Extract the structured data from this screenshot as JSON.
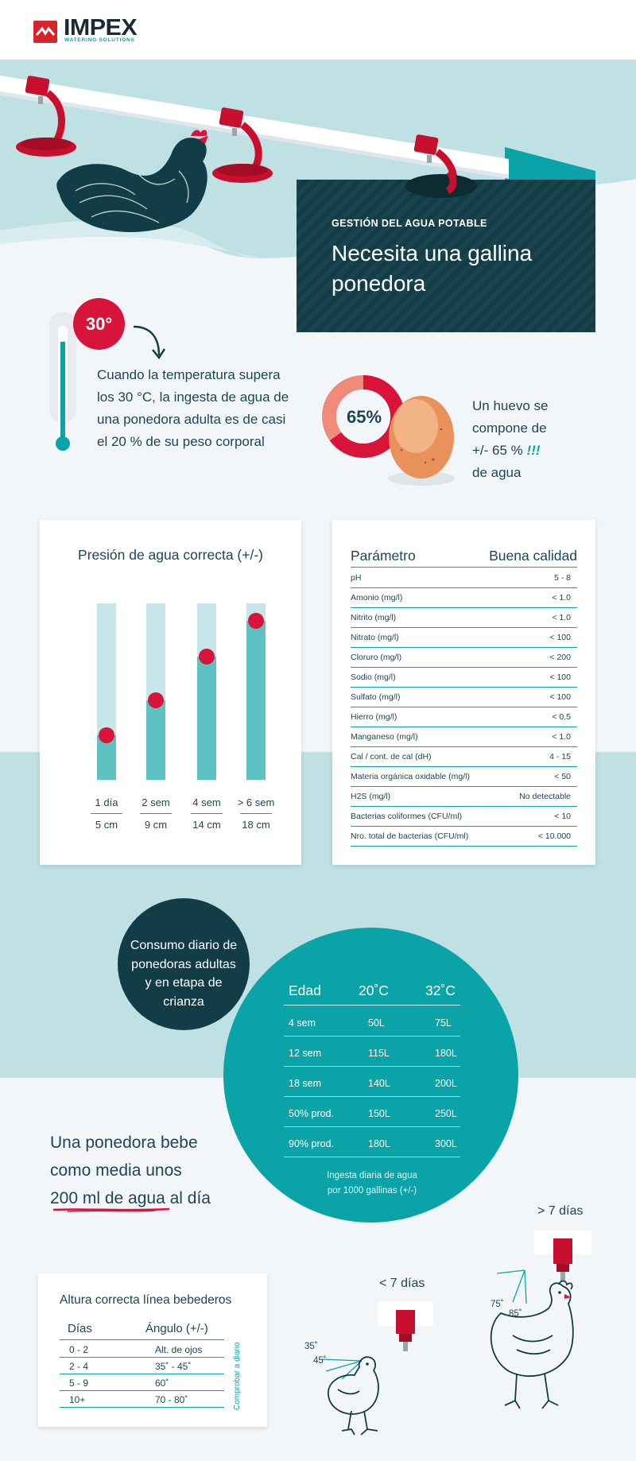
{
  "brand": {
    "name": "IMPEX",
    "tagline": "WATERING SOLUTIONS"
  },
  "hero": {
    "kicker": "GESTIÓN DEL AGUA POTABLE",
    "title": "Necesita una gallina ponedora"
  },
  "temperature": {
    "badge": "30°",
    "text": "Cuando la temperatura supera los 30 °C, la ingesta de agua de una ponedora adulta es de casi el 20 % de su peso corporal"
  },
  "egg": {
    "percent_label": "65%",
    "percent_value": 65,
    "text_line1": "Un huevo se",
    "text_line2": "compone de",
    "text_line3": "+/- 65 %",
    "text_line4": "de agua"
  },
  "pressure": {
    "title": "Presión de agua correcta (+/-)",
    "columns": [
      {
        "age": "1 día",
        "height": "5 cm",
        "value_cm": 5
      },
      {
        "age": "2 sem",
        "height": "9 cm",
        "value_cm": 9
      },
      {
        "age": "4 sem",
        "height": "14 cm",
        "value_cm": 14
      },
      {
        "age": "> 6 sem",
        "height": "18 cm",
        "value_cm": 18
      }
    ]
  },
  "params": {
    "header_param": "Parámetro",
    "header_quality": "Buena calidad",
    "rows": [
      {
        "name": "pH",
        "value": "5 - 8"
      },
      {
        "name": "Amonio (mg/l)",
        "value": "< 1.0"
      },
      {
        "name": "Nitrito (mg/l)",
        "value": "< 1.0"
      },
      {
        "name": "Nitrato (mg/l)",
        "value": "< 100"
      },
      {
        "name": "Cloruro (mg/l)",
        "value": "< 200"
      },
      {
        "name": "Sodio (mg/l)",
        "value": "< 100"
      },
      {
        "name": "Sulfato (mg/l)",
        "value": "< 100"
      },
      {
        "name": "Hierro (mg/l)",
        "value": "< 0.5"
      },
      {
        "name": "Manganeso (mg/l)",
        "value": "< 1.0"
      },
      {
        "name": "Cal / cont. de cal (dH)",
        "value": "4 - 15"
      },
      {
        "name": "Materia orgánica oxidable (mg/l)",
        "value": "< 50"
      },
      {
        "name": "H2S (mg/l)",
        "value": "No detectable"
      },
      {
        "name": "Bacterias coliformes (CFU/ml)",
        "value": "< 10"
      },
      {
        "name": "Nro. total de bacterias (CFU/ml)",
        "value": "< 10.000"
      }
    ]
  },
  "consumption": {
    "bubble": "Consumo diario de ponedoras adultas y en etapa de crianza",
    "header": {
      "age": "Edad",
      "t20": "20˚C",
      "t32": "32˚C"
    },
    "rows": [
      {
        "age": "4 sem",
        "t20": "50L",
        "t32": "75L"
      },
      {
        "age": "12 sem",
        "t20": "115L",
        "t32": "180L"
      },
      {
        "age": "18 sem",
        "t20": "140L",
        "t32": "200L"
      },
      {
        "age": "50% prod.",
        "t20": "150L",
        "t32": "250L"
      },
      {
        "age": "90% prod.",
        "t20": "180L",
        "t32": "300L"
      }
    ],
    "note_line1": "Ingesta diaria de agua",
    "note_line2": "por 1000 gallinas (+/-)"
  },
  "drink": {
    "line1": "Una ponedora bebe",
    "line2": "como media unos",
    "line3": "200 ml de agua al día"
  },
  "height": {
    "title": "Altura correcta línea bebederos",
    "header_days": "Días",
    "header_angle": "Ángulo (+/-)",
    "rows": [
      {
        "days": "0 - 2",
        "angle": "Alt. de ojos"
      },
      {
        "days": "2 - 4",
        "angle": "35˚ - 45˚"
      },
      {
        "days": "5 - 9",
        "angle": "60˚"
      },
      {
        "days": "10+",
        "angle": "70 - 80˚"
      }
    ],
    "side_note": "Comprobar a diario"
  },
  "chicks": {
    "young_label": "< 7 días",
    "young_angle_a": "35˚",
    "young_angle_b": "45˚",
    "adult_label": "> 7 días",
    "adult_angle_a": "75˚",
    "adult_angle_b": "85˚"
  },
  "colors": {
    "teal": "#0aa3a7",
    "dark": "#123d47",
    "red": "#d8143a",
    "light_teal": "#bfe1e4"
  }
}
